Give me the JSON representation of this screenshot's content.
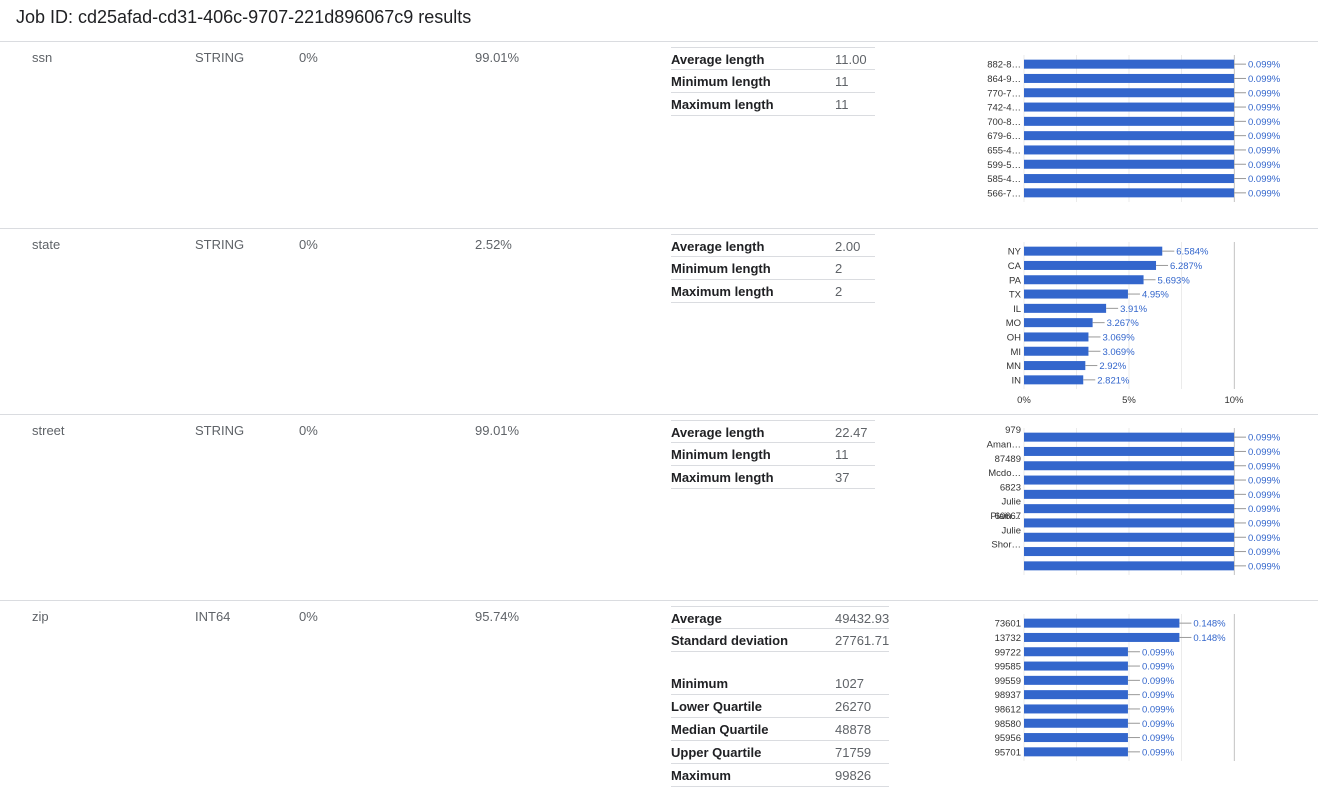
{
  "header": {
    "title": "Job ID: cd25afad-cd31-406c-9707-221d896067c9 results"
  },
  "colors": {
    "bar": "#3366cc",
    "label": "#3366cc",
    "axis": "#333333",
    "grid": "#cccccc"
  },
  "rows": [
    {
      "name": "ssn",
      "type": "STRING",
      "null_pct": "0%",
      "unique_pct": "99.01%",
      "stats": [
        {
          "label": "Average length",
          "value": "11.00"
        },
        {
          "label": "Minimum length",
          "value": "11"
        },
        {
          "label": "Maximum length",
          "value": "11"
        }
      ]
    },
    {
      "name": "state",
      "type": "STRING",
      "null_pct": "0%",
      "unique_pct": "2.52%",
      "stats": [
        {
          "label": "Average length",
          "value": "2.00"
        },
        {
          "label": "Minimum length",
          "value": "2"
        },
        {
          "label": "Maximum length",
          "value": "2"
        }
      ]
    },
    {
      "name": "street",
      "type": "STRING",
      "null_pct": "0%",
      "unique_pct": "99.01%",
      "stats": [
        {
          "label": "Average length",
          "value": "22.47"
        },
        {
          "label": "Minimum length",
          "value": "11"
        },
        {
          "label": "Maximum length",
          "value": "37"
        }
      ]
    },
    {
      "name": "zip",
      "type": "INT64",
      "null_pct": "0%",
      "unique_pct": "95.74%",
      "stats": [
        {
          "label": "Average",
          "value": "49432.93"
        },
        {
          "label": "Standard deviation",
          "value": "27761.71"
        },
        {
          "label": "",
          "value": ""
        },
        {
          "label": "Minimum",
          "value": "1027"
        },
        {
          "label": "Lower Quartile",
          "value": "26270"
        },
        {
          "label": "Median Quartile",
          "value": "48878"
        },
        {
          "label": "Upper Quartile",
          "value": "71759"
        },
        {
          "label": "Maximum",
          "value": "99826"
        }
      ]
    }
  ],
  "chart_data": [
    {
      "type": "bar",
      "orientation": "horizontal",
      "column": "ssn",
      "categories": [
        "882-8…",
        "864-9…",
        "770-7…",
        "742-4…",
        "700-8…",
        "679-6…",
        "655-4…",
        "599-5…",
        "585-4…",
        "566-7…"
      ],
      "values": [
        0.099,
        0.099,
        0.099,
        0.099,
        0.099,
        0.099,
        0.099,
        0.099,
        0.099,
        0.099
      ],
      "labels": [
        "0.099%",
        "0.099%",
        "0.099%",
        "0.099%",
        "0.099%",
        "0.099%",
        "0.099%",
        "0.099%",
        "0.099%",
        "0.099%"
      ],
      "xlim": [
        0,
        0.099
      ],
      "grid": true
    },
    {
      "type": "bar",
      "orientation": "horizontal",
      "column": "state",
      "categories": [
        "NY",
        "CA",
        "PA",
        "TX",
        "IL",
        "MO",
        "OH",
        "MI",
        "MN",
        "IN"
      ],
      "values": [
        6.584,
        6.287,
        5.693,
        4.95,
        3.91,
        3.267,
        3.069,
        3.069,
        2.92,
        2.821
      ],
      "labels": [
        "6.584%",
        "6.287%",
        "5.693%",
        "4.95%",
        "3.91%",
        "3.267%",
        "3.069%",
        "3.069%",
        "2.92%",
        "2.821%"
      ],
      "xlim": [
        0,
        10
      ],
      "xticks": [
        "0%",
        "5%",
        "10%"
      ],
      "grid": true
    },
    {
      "type": "bar",
      "orientation": "horizontal",
      "column": "street",
      "categories": [
        "979 Aman…",
        "",
        "87489 Mcdo…",
        "",
        "6823 Julie Plain…",
        "",
        "60667 Julie Shor…",
        "",
        "",
        ""
      ],
      "category_lines": [
        [
          "979",
          "Aman…"
        ],
        [],
        [
          "87489",
          "Mcdo…"
        ],
        [],
        [
          "6823",
          "Julie",
          "Plain…"
        ],
        [],
        [
          "60667",
          "Julie",
          "Shor…"
        ],
        [],
        [],
        []
      ],
      "values": [
        0.099,
        0.099,
        0.099,
        0.099,
        0.099,
        0.099,
        0.099,
        0.099,
        0.099,
        0.099
      ],
      "labels": [
        "0.099%",
        "0.099%",
        "0.099%",
        "0.099%",
        "0.099%",
        "0.099%",
        "0.099%",
        "0.099%",
        "0.099%",
        "0.099%"
      ],
      "xlim": [
        0,
        0.099
      ],
      "grid": true
    },
    {
      "type": "bar",
      "orientation": "horizontal",
      "column": "zip",
      "categories": [
        "73601",
        "13732",
        "99722",
        "99585",
        "99559",
        "98937",
        "98612",
        "98580",
        "95956",
        "95701"
      ],
      "values": [
        0.148,
        0.148,
        0.099,
        0.099,
        0.099,
        0.099,
        0.099,
        0.099,
        0.099,
        0.099
      ],
      "labels": [
        "0.148%",
        "0.148%",
        "0.099%",
        "0.099%",
        "0.099%",
        "0.099%",
        "0.099%",
        "0.099%",
        "0.099%",
        "0.099%"
      ],
      "xlim": [
        0,
        0.2
      ],
      "grid": true
    }
  ]
}
